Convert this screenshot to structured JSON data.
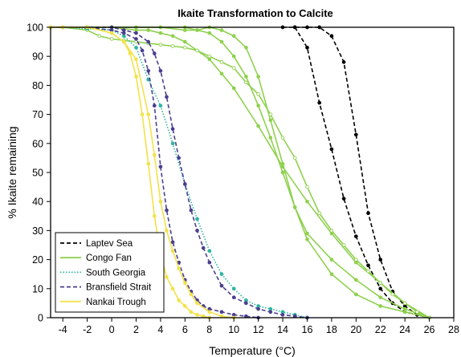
{
  "chart_data": {
    "type": "line",
    "title": "Ikaite Transformation to Calcite",
    "xlabel": "Temperature (°C)",
    "ylabel": "% Ikaite remaining",
    "xlim": [
      -5,
      28
    ],
    "ylim": [
      0,
      100
    ],
    "xticks": [
      -4,
      -2,
      0,
      2,
      4,
      6,
      8,
      10,
      12,
      14,
      16,
      18,
      20,
      22,
      24,
      26,
      28
    ],
    "yticks": [
      0,
      10,
      20,
      30,
      40,
      50,
      60,
      70,
      80,
      90,
      100
    ],
    "grid": false,
    "legend_position": "bottom-left",
    "series": [
      {
        "name": "Laptev Sea",
        "color": "#000000",
        "style": "dashed",
        "marker": "filled",
        "x": [
          15.0,
          16.0,
          17.0,
          18.0,
          19.0,
          20.0,
          21.0,
          22.0,
          23.0,
          24.0,
          25.0,
          26.0
        ],
        "y": [
          100,
          93,
          74,
          58,
          41,
          28,
          18,
          10,
          5,
          2,
          1,
          0
        ]
      },
      {
        "name": "Laptev Sea",
        "color": "#000000",
        "style": "dashed",
        "marker": "filled",
        "x": [
          14.0,
          15.0,
          16.0,
          17.0,
          18.0,
          19.0,
          20.0,
          21.0,
          22.0,
          23.0,
          24.0,
          25.0,
          26.0
        ],
        "y": [
          100,
          100,
          100,
          100,
          97,
          88,
          63,
          36,
          20,
          9,
          4,
          1,
          0
        ]
      },
      {
        "name": "Congo Fan",
        "color": "#8fd14f",
        "style": "solid",
        "marker": "filled",
        "x": [
          -5.0,
          -4.0,
          -2.0,
          0.0,
          2.0,
          4.0,
          6.0,
          7.0,
          8.0,
          9.0,
          10.0,
          11.0,
          12.0,
          13.0,
          14.0,
          15.0,
          16.0,
          18.0,
          20.0,
          22.0,
          24.0,
          26.0
        ],
        "y": [
          100,
          100,
          100,
          100,
          100,
          100,
          100,
          99,
          98,
          95,
          90,
          83,
          73,
          62,
          50,
          38,
          27,
          15,
          8,
          4,
          2,
          0
        ]
      },
      {
        "name": "Congo Fan",
        "color": "#8fd14f",
        "style": "solid",
        "marker": "filled",
        "x": [
          -5.0,
          -4.0,
          -2.0,
          0.0,
          2.0,
          3.0,
          4.0,
          5.0,
          6.0,
          7.0,
          8.0,
          9.0,
          10.0,
          12.0,
          14.0,
          16.0,
          18.0,
          20.0,
          22.0,
          24.0,
          26.0
        ],
        "y": [
          100,
          100,
          100,
          100,
          99,
          99,
          98,
          97,
          95,
          92,
          89,
          84,
          79,
          66,
          52,
          40,
          29,
          19,
          12,
          5,
          0
        ]
      },
      {
        "name": "Congo Fan",
        "color": "#8fd14f",
        "style": "solid",
        "marker": "filled",
        "x": [
          -5.0,
          -4.0,
          -2.0,
          0.0,
          2.0,
          4.0,
          6.0,
          7.0,
          8.0,
          9.0,
          10.0,
          11.0,
          12.0,
          13.0,
          14.0,
          15.0,
          16.0,
          18.0,
          20.0,
          22.0,
          24.0,
          26.0
        ],
        "y": [
          100,
          100,
          100,
          100,
          100,
          100,
          99,
          99,
          100,
          99,
          97,
          93,
          83,
          68,
          53,
          38,
          29,
          20,
          13,
          7,
          3,
          0
        ]
      },
      {
        "name": "Congo Fan",
        "color": "#8fd14f",
        "style": "solid",
        "marker": "open",
        "x": [
          -5.0,
          -4.0,
          -2.0,
          -1.0,
          0.0,
          1.0,
          2.0,
          3.0,
          4.0,
          5.0,
          6.0,
          7.0,
          8.0,
          9.0,
          10.0,
          11.0,
          12.0,
          13.0,
          14.0,
          15.0,
          16.0,
          17.0,
          18.0,
          19.0,
          20.0,
          21.0,
          22.0,
          23.0,
          24.0,
          25.0,
          26.0
        ],
        "y": [
          100,
          100,
          99,
          97,
          96,
          95.5,
          95,
          94.5,
          94,
          93.5,
          93,
          92,
          90,
          88,
          86,
          81,
          77,
          70,
          62,
          55,
          45,
          36,
          30,
          25,
          20,
          16,
          12,
          8,
          5,
          2,
          0
        ]
      },
      {
        "name": "South Georgia",
        "color": "#2fb5a0",
        "style": "dotted",
        "marker": "filled",
        "x": [
          -5.0,
          -4.0,
          -2.0,
          0.0,
          1.0,
          2.0,
          3.0,
          4.0,
          5.0,
          6.0,
          7.0,
          8.0,
          9.0,
          10.0,
          11.0,
          12.0,
          13.0,
          14.0,
          15.0,
          16.0
        ],
        "y": [
          100,
          100,
          99.5,
          99,
          97,
          93,
          82,
          73,
          60,
          46,
          34,
          23,
          15,
          10,
          6,
          4,
          3,
          2,
          1,
          0
        ]
      },
      {
        "name": "Bransfield Strait",
        "color": "#4a3f8f",
        "style": "dashed",
        "marker": "filled",
        "x": [
          -5.0,
          -4.0,
          -2.0,
          0.0,
          1.0,
          2.0,
          2.5,
          3.0,
          3.5,
          4.0,
          4.5,
          5.0,
          5.5,
          6.0,
          6.5,
          7.0,
          7.5,
          8.0,
          9.0,
          10.0,
          11.0,
          12.0
        ],
        "y": [
          100,
          100,
          100,
          99,
          98,
          96,
          92,
          85,
          73,
          52,
          37,
          26,
          19,
          13,
          9,
          6,
          4,
          3,
          2,
          1,
          0.5,
          0
        ]
      },
      {
        "name": "Bransfield Strait",
        "color": "#4a3f8f",
        "style": "dashed",
        "marker": "filled",
        "x": [
          -5.0,
          -4.0,
          -2.0,
          0.0,
          1.0,
          2.0,
          3.0,
          3.5,
          4.0,
          4.5,
          5.0,
          5.5,
          6.0,
          6.5,
          7.0,
          7.5,
          8.0,
          9.0,
          10.0,
          11.0,
          12.0,
          13.0,
          14.0,
          15.0,
          16.0
        ],
        "y": [
          100,
          100,
          100,
          100,
          99,
          98,
          95,
          91,
          85,
          76,
          65,
          55,
          46,
          37,
          30,
          24,
          19,
          11,
          7,
          5,
          3,
          2,
          1,
          0.5,
          0
        ]
      },
      {
        "name": "Nankai Trough",
        "color": "#f2e24a",
        "style": "solid",
        "marker": "filled",
        "x": [
          -5.0,
          -4.0,
          -2.0,
          0.0,
          1.0,
          1.5,
          2.0,
          2.5,
          3.0,
          3.5,
          4.0,
          4.5,
          5.0,
          5.5,
          6.0,
          6.5,
          7.0,
          7.5,
          8.0
        ],
        "y": [
          100,
          100,
          100,
          98,
          95,
          91,
          83,
          70,
          53,
          35,
          22,
          14,
          10,
          6,
          4,
          2,
          1,
          0.5,
          0
        ]
      },
      {
        "name": "Nankai Trough",
        "color": "#f2e24a",
        "style": "solid",
        "marker": "filled",
        "x": [
          -5.0,
          -4.0,
          -2.0,
          0.0,
          1.0,
          2.0,
          3.0,
          3.5,
          4.0,
          4.5,
          5.0,
          5.5,
          6.0,
          6.5,
          7.0,
          8.0,
          9.0,
          10.0
        ],
        "y": [
          100,
          100,
          100,
          98,
          95,
          89,
          70,
          56,
          40,
          30,
          23,
          17,
          12,
          8,
          5,
          2,
          0.5,
          0
        ]
      }
    ],
    "legend": [
      {
        "label": "Laptev Sea",
        "color": "#000000",
        "style": "dashed"
      },
      {
        "label": "Congo Fan",
        "color": "#8fd14f",
        "style": "solid"
      },
      {
        "label": "South Georgia",
        "color": "#2fb5a0",
        "style": "dotted"
      },
      {
        "label": "Bransfield Strait",
        "color": "#4a3f8f",
        "style": "dashed"
      },
      {
        "label": "Nankai Trough",
        "color": "#f2e24a",
        "style": "solid"
      }
    ]
  }
}
